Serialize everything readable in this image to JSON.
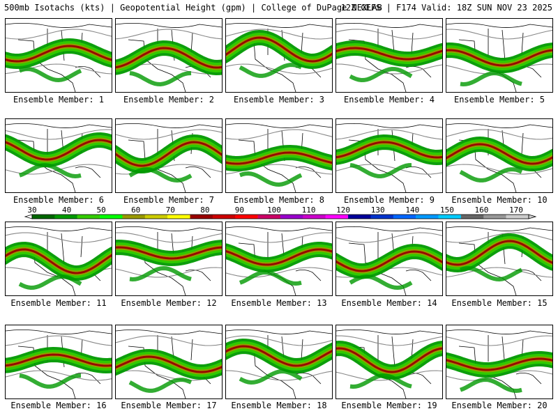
{
  "header": {
    "title_left": "500mb Isotachs (kts) | Geopotential Height (gpm) | College of DuPage NEXLAB",
    "title_right": "12Z GEFS | F174 Valid: 18Z SUN NOV 23 2025"
  },
  "members": [
    {
      "label": "Ensemble Member: 1"
    },
    {
      "label": "Ensemble Member: 2"
    },
    {
      "label": "Ensemble Member: 3"
    },
    {
      "label": "Ensemble Member: 4"
    },
    {
      "label": "Ensemble Member: 5"
    },
    {
      "label": "Ensemble Member: 6"
    },
    {
      "label": "Ensemble Member: 7"
    },
    {
      "label": "Ensemble Member: 8"
    },
    {
      "label": "Ensemble Member: 9"
    },
    {
      "label": "Ensemble Member: 10"
    },
    {
      "label": "Ensemble Member: 11"
    },
    {
      "label": "Ensemble Member: 12"
    },
    {
      "label": "Ensemble Member: 13"
    },
    {
      "label": "Ensemble Member: 14"
    },
    {
      "label": "Ensemble Member: 15"
    },
    {
      "label": "Ensemble Member: 16"
    },
    {
      "label": "Ensemble Member: 17"
    },
    {
      "label": "Ensemble Member: 18"
    },
    {
      "label": "Ensemble Member: 19"
    },
    {
      "label": "Ensemble Member: 20"
    }
  ],
  "colorbar": {
    "unit": "kts",
    "labels": [
      "30",
      "40",
      "50",
      "60",
      "70",
      "80",
      "90",
      "100",
      "110",
      "120",
      "130",
      "140",
      "150",
      "160",
      "170"
    ],
    "colors": [
      "#006600",
      "#009900",
      "#33cc00",
      "#00ff00",
      "#999900",
      "#cccc00",
      "#ffff00",
      "#990000",
      "#cc0000",
      "#ff0000",
      "#cc0066",
      "#9900cc",
      "#cc00cc",
      "#ff00ff",
      "#000099",
      "#0033cc",
      "#0066ff",
      "#0099ff",
      "#00ccff",
      "#666666",
      "#999999",
      "#cccccc"
    ]
  }
}
